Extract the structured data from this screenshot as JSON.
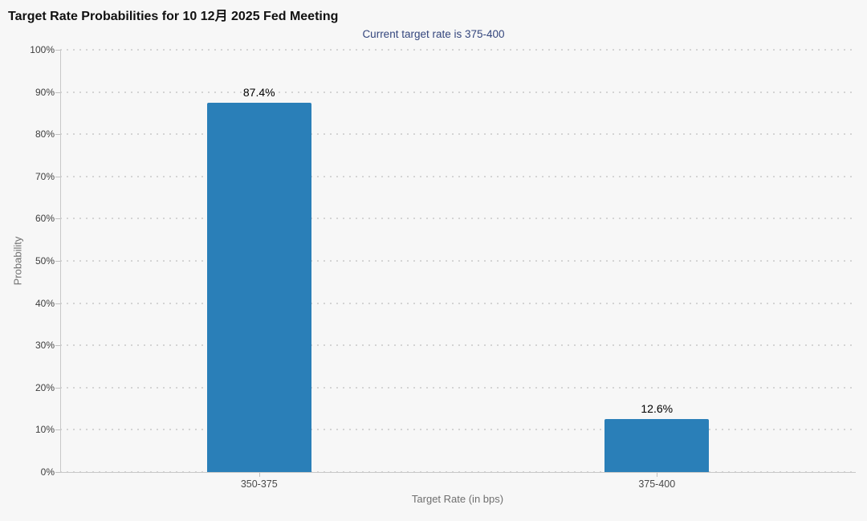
{
  "chart_data": {
    "type": "bar",
    "title": "Target Rate Probabilities for 10 12月 2025 Fed Meeting",
    "subtitle": "Current target rate is 375-400",
    "categories": [
      "350-375",
      "375-400"
    ],
    "values": [
      87.4,
      12.6
    ],
    "value_labels": [
      "87.4%",
      "12.6%"
    ],
    "xlabel": "Target Rate (in bps)",
    "ylabel": "Probability",
    "ylim": [
      0,
      100
    ],
    "ytick_values": [
      0,
      10,
      20,
      30,
      40,
      50,
      60,
      70,
      80,
      90,
      100
    ],
    "ytick_labels": [
      "0%",
      "10%",
      "20%",
      "30%",
      "40%",
      "50%",
      "60%",
      "70%",
      "80%",
      "90%",
      "100%"
    ],
    "grid": "dotted-horizontal",
    "legend": "none",
    "colors": {
      "bar": "#2a7fb8",
      "subtitle": "#34467d",
      "background": "#f7f7f7",
      "axis": "#c8c8c8",
      "grid": "#d4d4d4"
    }
  }
}
